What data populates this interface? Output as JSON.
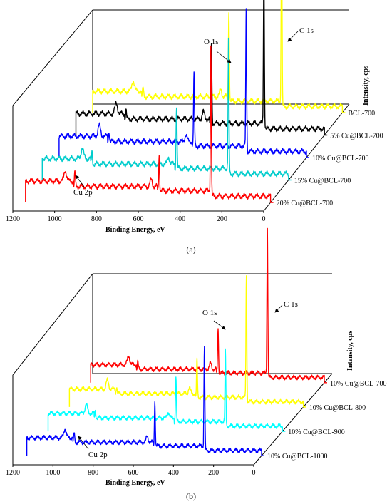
{
  "chart_data": [
    {
      "type": "line",
      "panel_label": "(a)",
      "xlabel": "Binding Energy, eV",
      "ylabel": "Intensity, cps",
      "xlim": [
        1200,
        0
      ],
      "x_ticks": [
        1200,
        1000,
        800,
        600,
        400,
        200,
        0
      ],
      "style": "3d-waterfall",
      "annotations": [
        "O 1s",
        "C 1s",
        "Cu 2p"
      ],
      "series": [
        {
          "name": "BCL-700",
          "color": "#ffff00",
          "peaks": [
            {
              "x": 285,
              "height": 1.0
            },
            {
              "x": 532,
              "height": 0.5
            },
            {
              "x": 934,
              "height": 0.05
            }
          ]
        },
        {
          "name": "5% Cu@BCL-700",
          "color": "#000000",
          "peaks": [
            {
              "x": 285,
              "height": 0.95
            },
            {
              "x": 532,
              "height": 0.45
            },
            {
              "x": 934,
              "height": 0.05
            }
          ]
        },
        {
          "name": "10% Cu@BCL-700",
          "color": "#0000ff",
          "peaks": [
            {
              "x": 285,
              "height": 0.8
            },
            {
              "x": 532,
              "height": 0.4
            },
            {
              "x": 934,
              "height": 0.06
            }
          ]
        },
        {
          "name": "15% Cu@BCL-700",
          "color": "#00cccc",
          "peaks": [
            {
              "x": 285,
              "height": 0.75
            },
            {
              "x": 532,
              "height": 0.35
            },
            {
              "x": 934,
              "height": 0.07
            }
          ]
        },
        {
          "name": "20% Cu@BCL-700",
          "color": "#ff0000",
          "peaks": [
            {
              "x": 285,
              "height": 0.85
            },
            {
              "x": 532,
              "height": 0.2
            },
            {
              "x": 934,
              "height": 0.08
            }
          ]
        }
      ]
    },
    {
      "type": "line",
      "panel_label": "(b)",
      "xlabel": "Binding Energy, eV",
      "ylabel": "Intensity, cps",
      "xlim": [
        1200,
        0
      ],
      "x_ticks": [
        1200,
        1000,
        800,
        600,
        400,
        200,
        0
      ],
      "style": "3d-waterfall",
      "annotations": [
        "O 1s",
        "C 1s",
        "Cu 2p"
      ],
      "series": [
        {
          "name": "10% Cu@BCL-700",
          "color": "#ff0000",
          "peaks": [
            {
              "x": 285,
              "height": 1.0
            },
            {
              "x": 532,
              "height": 0.3
            },
            {
              "x": 934,
              "height": 0.05
            }
          ]
        },
        {
          "name": "10% Cu@BCL-800",
          "color": "#ffff00",
          "peaks": [
            {
              "x": 285,
              "height": 0.85
            },
            {
              "x": 532,
              "height": 0.25
            },
            {
              "x": 934,
              "height": 0.05
            }
          ]
        },
        {
          "name": "10% Cu@BCL-900",
          "color": "#00ffff",
          "peaks": [
            {
              "x": 285,
              "height": 0.5
            },
            {
              "x": 532,
              "height": 0.3
            },
            {
              "x": 934,
              "height": 0.05
            }
          ]
        },
        {
          "name": "10% Cu@BCL-1000",
          "color": "#0000ff",
          "peaks": [
            {
              "x": 285,
              "height": 0.7
            },
            {
              "x": 532,
              "height": 0.3
            },
            {
              "x": 934,
              "height": 0.06
            }
          ]
        }
      ]
    }
  ]
}
